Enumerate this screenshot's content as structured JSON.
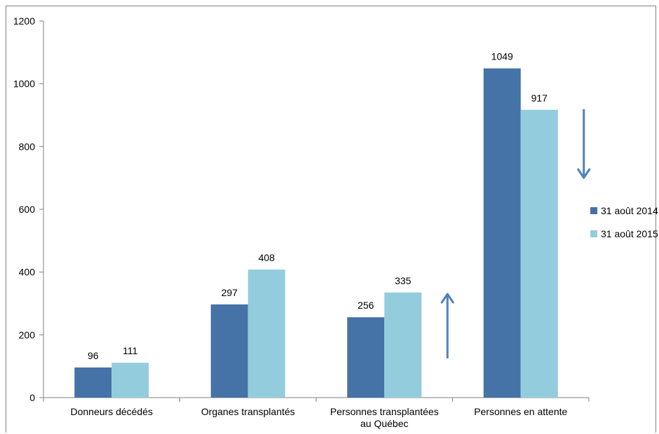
{
  "chart_data": {
    "type": "bar",
    "categories": [
      [
        "Donneurs décédés"
      ],
      [
        "Organes transplantés"
      ],
      [
        "Personnes transplantées",
        "au Québec"
      ],
      [
        "Personnes en attente"
      ]
    ],
    "series": [
      {
        "name": "31 août 2014",
        "color": "#4572A7",
        "values": [
          96,
          297,
          256,
          1049
        ]
      },
      {
        "name": "31 août 2015",
        "color": "#93CDDD",
        "values": [
          111,
          408,
          335,
          917
        ]
      }
    ],
    "yticks": [
      0,
      200,
      400,
      600,
      800,
      1000,
      1200
    ],
    "ylim": [
      0,
      1200
    ],
    "legend_position": "right",
    "annotations": [
      {
        "type": "arrow",
        "direction": "up",
        "category_index": 2,
        "color": "#4F81BD"
      },
      {
        "type": "arrow",
        "direction": "down",
        "category_index": 3,
        "color": "#4F81BD"
      }
    ]
  }
}
